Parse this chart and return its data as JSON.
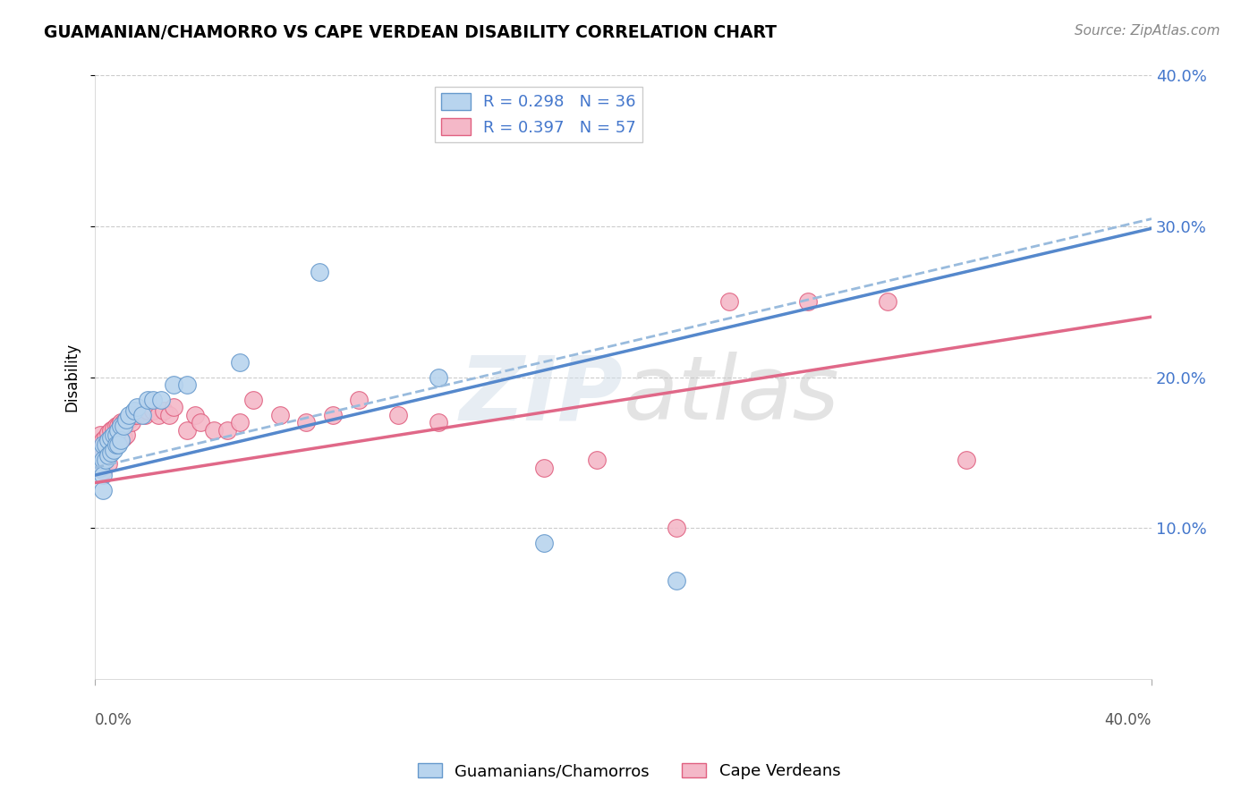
{
  "title": "GUAMANIAN/CHAMORRO VS CAPE VERDEAN DISABILITY CORRELATION CHART",
  "source": "Source: ZipAtlas.com",
  "ylabel": "Disability",
  "xlim": [
    0.0,
    0.4
  ],
  "ylim": [
    0.0,
    0.4
  ],
  "ytick_values": [
    0.1,
    0.2,
    0.3,
    0.4
  ],
  "watermark": "ZIPatlas",
  "R_blue": 0.298,
  "N_blue": 36,
  "R_pink": 0.397,
  "N_pink": 57,
  "color_blue_fill": "#b8d4ee",
  "color_pink_fill": "#f4b8c8",
  "color_blue_edge": "#6699cc",
  "color_pink_edge": "#e06080",
  "color_blue_line": "#5588cc",
  "color_pink_line": "#e06888",
  "color_blue_dashed": "#99bbdd",
  "color_text_blue": "#4477cc",
  "color_text_pink": "#e06888",
  "blue_x": [
    0.002,
    0.002,
    0.003,
    0.003,
    0.003,
    0.003,
    0.004,
    0.004,
    0.005,
    0.005,
    0.006,
    0.006,
    0.007,
    0.007,
    0.008,
    0.008,
    0.009,
    0.009,
    0.01,
    0.01,
    0.011,
    0.012,
    0.013,
    0.015,
    0.016,
    0.018,
    0.02,
    0.022,
    0.025,
    0.03,
    0.035,
    0.055,
    0.085,
    0.13,
    0.17,
    0.22
  ],
  "blue_y": [
    0.15,
    0.14,
    0.155,
    0.145,
    0.135,
    0.125,
    0.155,
    0.145,
    0.158,
    0.148,
    0.16,
    0.15,
    0.162,
    0.152,
    0.162,
    0.155,
    0.165,
    0.155,
    0.168,
    0.158,
    0.168,
    0.172,
    0.175,
    0.178,
    0.18,
    0.175,
    0.185,
    0.185,
    0.185,
    0.195,
    0.195,
    0.21,
    0.27,
    0.2,
    0.09,
    0.065
  ],
  "pink_x": [
    0.002,
    0.002,
    0.002,
    0.003,
    0.003,
    0.003,
    0.004,
    0.004,
    0.005,
    0.005,
    0.005,
    0.006,
    0.006,
    0.007,
    0.007,
    0.008,
    0.008,
    0.009,
    0.009,
    0.01,
    0.01,
    0.011,
    0.011,
    0.012,
    0.012,
    0.013,
    0.014,
    0.015,
    0.016,
    0.018,
    0.019,
    0.02,
    0.022,
    0.024,
    0.026,
    0.028,
    0.03,
    0.035,
    0.038,
    0.04,
    0.045,
    0.05,
    0.055,
    0.06,
    0.07,
    0.08,
    0.09,
    0.1,
    0.115,
    0.13,
    0.17,
    0.19,
    0.22,
    0.24,
    0.27,
    0.3,
    0.33
  ],
  "pink_y": [
    0.162,
    0.152,
    0.142,
    0.158,
    0.148,
    0.138,
    0.16,
    0.15,
    0.163,
    0.153,
    0.143,
    0.165,
    0.155,
    0.166,
    0.156,
    0.168,
    0.158,
    0.168,
    0.158,
    0.17,
    0.16,
    0.17,
    0.16,
    0.172,
    0.162,
    0.172,
    0.17,
    0.175,
    0.175,
    0.178,
    0.175,
    0.178,
    0.178,
    0.175,
    0.178,
    0.175,
    0.18,
    0.165,
    0.175,
    0.17,
    0.165,
    0.165,
    0.17,
    0.185,
    0.175,
    0.17,
    0.175,
    0.185,
    0.175,
    0.17,
    0.14,
    0.145,
    0.1,
    0.25,
    0.25,
    0.25,
    0.145
  ]
}
